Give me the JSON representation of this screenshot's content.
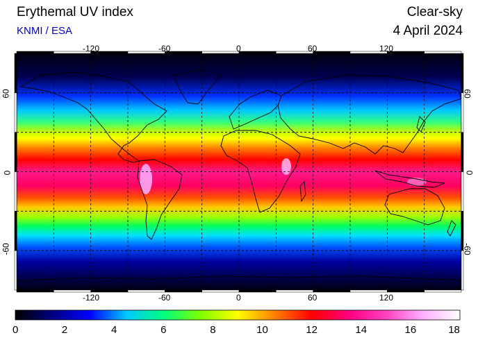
{
  "header": {
    "title": "Erythemal UV index",
    "credit": "KNMI / ESA",
    "condition": "Clear-sky",
    "date": "4 April 2024"
  },
  "map": {
    "projection": "equirectangular",
    "lon_range": [
      -180,
      180
    ],
    "lat_range": [
      -90,
      90
    ],
    "grid_step_deg": 30,
    "grid_style": "dashed",
    "lon_tick_labels": [
      "-120",
      "-60",
      "0",
      "60",
      "120"
    ],
    "lat_tick_labels": [
      "60",
      "0",
      "-60"
    ],
    "coastlines": true
  },
  "colorbar": {
    "min": 0,
    "max": 18,
    "tick_labels": [
      "0",
      "2",
      "4",
      "6",
      "8",
      "10",
      "12",
      "14",
      "16",
      "18"
    ],
    "colors": [
      "#000000",
      "#000080",
      "#0000ff",
      "#00c8ff",
      "#00ff80",
      "#80ff00",
      "#ffff00",
      "#ff8000",
      "#ff0000",
      "#ff0080",
      "#ff40c0",
      "#ffb0ff",
      "#ffffff"
    ]
  }
}
